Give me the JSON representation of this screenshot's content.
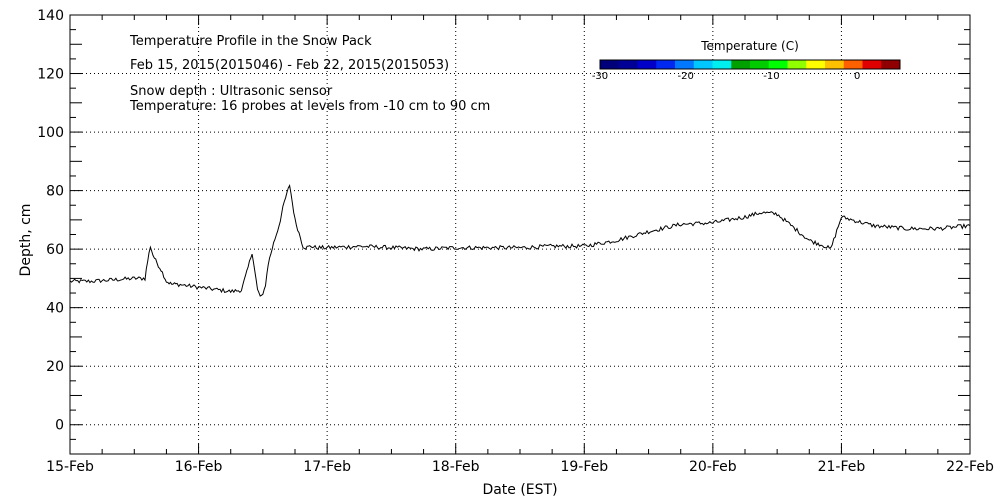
{
  "chart_data": {
    "type": "line",
    "title": "Temperature Profile in the Snow Pack",
    "subtitle": "Feb 15, 2015(2015046) - Feb 22, 2015(2015053)",
    "notes": [
      "Snow depth : Ultrasonic sensor",
      "Temperature: 16 probes at levels from -10 cm to 90 cm"
    ],
    "xlabel": "Date (EST)",
    "ylabel": "Depth, cm",
    "xlim": [
      "2015-02-15",
      "2015-02-22"
    ],
    "ylim": [
      -10,
      140
    ],
    "x_ticks": [
      "15-Feb",
      "16-Feb",
      "17-Feb",
      "18-Feb",
      "19-Feb",
      "20-Feb",
      "21-Feb",
      "22-Feb"
    ],
    "y_ticks": [
      "0",
      "20",
      "40",
      "60",
      "80",
      "100",
      "120",
      "140"
    ],
    "grid": true,
    "colorbar": {
      "title": "Temperature (C)",
      "range": [
        -30,
        5
      ],
      "tick_labels": [
        "-30",
        "-20",
        "-10",
        "0"
      ],
      "tick_values": [
        -30,
        -20,
        -10,
        0
      ],
      "colors": [
        "#00007a",
        "#000096",
        "#0000c8",
        "#0028f0",
        "#0078ff",
        "#00c8ff",
        "#00f0f0",
        "#00a000",
        "#00cc00",
        "#00ff00",
        "#90ff00",
        "#ffff00",
        "#ffc000",
        "#ff6000",
        "#e00000",
        "#900000"
      ]
    },
    "series": [
      {
        "color": "#000000",
        "x": [
          "2015-02-15T00:00",
          "2015-02-15T04:00",
          "2015-02-15T08:00",
          "2015-02-15T12:00",
          "2015-02-15T14:00",
          "2015-02-15T14:30",
          "2015-02-15T15:00",
          "2015-02-15T15:30",
          "2015-02-15T16:00",
          "2015-02-15T17:00",
          "2015-02-15T18:00",
          "2015-02-15T19:00",
          "2015-02-15T20:00",
          "2015-02-15T22:00",
          "2015-02-16T00:00",
          "2015-02-16T04:00",
          "2015-02-16T06:00",
          "2015-02-16T08:00",
          "2015-02-16T09:00",
          "2015-02-16T10:00",
          "2015-02-16T11:00",
          "2015-02-16T11:30",
          "2015-02-16T12:00",
          "2015-02-16T12:30",
          "2015-02-16T13:00",
          "2015-02-16T14:00",
          "2015-02-16T15:00",
          "2015-02-16T16:00",
          "2015-02-16T17:00",
          "2015-02-16T18:00",
          "2015-02-16T19:00",
          "2015-02-16T19:30",
          "2015-02-16T20:00",
          "2015-02-16T21:00",
          "2015-02-16T22:00",
          "2015-02-17T00:00",
          "2015-02-17T06:00",
          "2015-02-17T12:00",
          "2015-02-17T18:00",
          "2015-02-18T00:00",
          "2015-02-18T06:00",
          "2015-02-18T12:00",
          "2015-02-18T18:00",
          "2015-02-19T00:00",
          "2015-02-19T06:00",
          "2015-02-19T12:00",
          "2015-02-19T18:00",
          "2015-02-20T00:00",
          "2015-02-20T06:00",
          "2015-02-20T09:00",
          "2015-02-20T12:00",
          "2015-02-20T18:00",
          "2015-02-20T21:00",
          "2015-02-20T22:00",
          "2015-02-21T00:00",
          "2015-02-21T06:00",
          "2015-02-21T12:00",
          "2015-02-21T18:00",
          "2015-02-22T00:00"
        ],
        "y": [
          49,
          49,
          49.5,
          50,
          50,
          56,
          61,
          58,
          56,
          53,
          49,
          48,
          48,
          47.5,
          47,
          46,
          45.5,
          46,
          52,
          59,
          46,
          44,
          44,
          48,
          55,
          62,
          68,
          76,
          82,
          70,
          64,
          61,
          60.5,
          61,
          60.5,
          60.5,
          61,
          60.5,
          60,
          60.5,
          60.5,
          60.5,
          61,
          61,
          63,
          66,
          68.5,
          69,
          71,
          72.5,
          72,
          63,
          61,
          60,
          71,
          68,
          67,
          67,
          68
        ]
      }
    ]
  }
}
